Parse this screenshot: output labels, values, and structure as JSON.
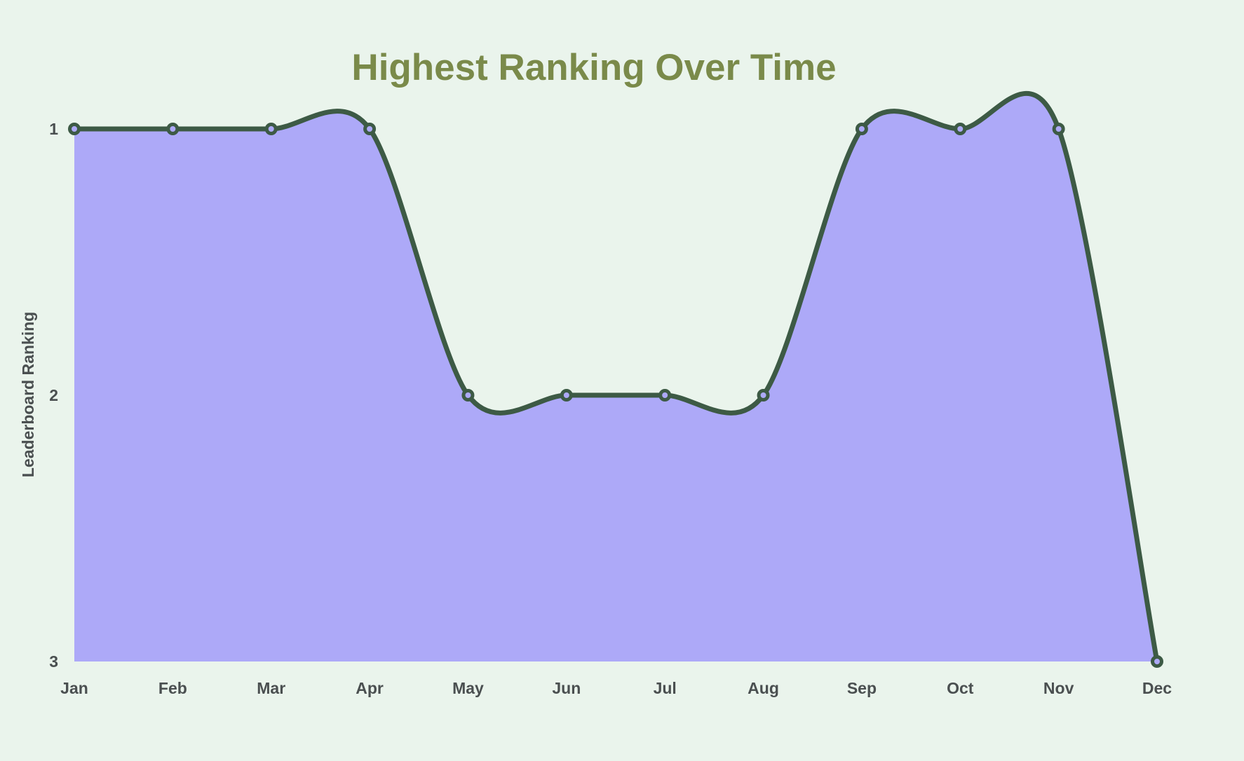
{
  "colors": {
    "background": "#EAF4EC",
    "title": "#7A8A4A",
    "line": "#3D5A45",
    "area_fill": "#ADA9F8",
    "marker_fill": "#ADA9F8",
    "tick_text": "#4A4F50"
  },
  "chart_data": {
    "type": "area",
    "title": "Highest Ranking Over Time",
    "xlabel": "",
    "ylabel": "Leaderboard Ranking",
    "categories": [
      "Jan",
      "Feb",
      "Mar",
      "Apr",
      "May",
      "Jun",
      "Jul",
      "Aug",
      "Sep",
      "Oct",
      "Nov",
      "Dec"
    ],
    "series": [
      {
        "values": [
          1,
          1,
          1,
          1,
          2,
          2,
          2,
          2,
          1,
          1,
          1,
          3
        ]
      }
    ],
    "y_axis": {
      "reversed": true,
      "ylim": [
        1,
        3
      ],
      "ticks": [
        1,
        2,
        3
      ]
    },
    "interpolation": "spline",
    "grid": false,
    "legend": "none"
  }
}
